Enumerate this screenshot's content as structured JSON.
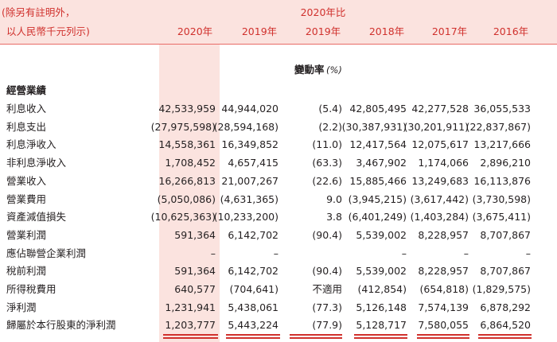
{
  "header": {
    "unit_note_line1": "(除另有註明外，",
    "unit_note_line2": "以人民幣千元列示)",
    "change_group": "2020年比",
    "years": [
      "2020年",
      "2019年",
      "2019年",
      "2018年",
      "2017年",
      "2016年"
    ]
  },
  "change_rate_label": "變動率",
  "change_rate_unit": "(%)",
  "section_title": "經營業績",
  "rows": [
    {
      "label": "利息收入",
      "values": [
        "42,533,959",
        "44,944,020",
        "(5.4)",
        "42,805,495",
        "42,277,528",
        "36,055,533"
      ]
    },
    {
      "label": "利息支出",
      "values": [
        "(27,975,598)",
        "(28,594,168)",
        "(2.2)",
        "(30,387,931)",
        "(30,201,911)",
        "(22,837,867)"
      ]
    },
    {
      "label": "利息淨收入",
      "values": [
        "14,558,361",
        "16,349,852",
        "(11.0)",
        "12,417,564",
        "12,075,617",
        "13,217,666"
      ]
    },
    {
      "label": "非利息淨收入",
      "values": [
        "1,708,452",
        "4,657,415",
        "(63.3)",
        "3,467,902",
        "1,174,066",
        "2,896,210"
      ]
    },
    {
      "label": "營業收入",
      "values": [
        "16,266,813",
        "21,007,267",
        "(22.6)",
        "15,885,466",
        "13,249,683",
        "16,113,876"
      ]
    },
    {
      "label": "營業費用",
      "values": [
        "(5,050,086)",
        "(4,631,365)",
        "9.0",
        "(3,945,215)",
        "(3,617,442)",
        "(3,730,598)"
      ]
    },
    {
      "label": "資產減值損失",
      "values": [
        "(10,625,363)",
        "(10,233,200)",
        "3.8",
        "(6,401,249)",
        "(1,403,284)",
        "(3,675,411)"
      ]
    },
    {
      "label": "營業利潤",
      "values": [
        "591,364",
        "6,142,702",
        "(90.4)",
        "5,539,002",
        "8,228,957",
        "8,707,867"
      ]
    },
    {
      "label": "應佔聯營企業利潤",
      "values": [
        "–",
        "–",
        "",
        "–",
        "–",
        "–"
      ]
    },
    {
      "label": "稅前利潤",
      "values": [
        "591,364",
        "6,142,702",
        "(90.4)",
        "5,539,002",
        "8,228,957",
        "8,707,867"
      ]
    },
    {
      "label": "所得稅費用",
      "values": [
        "640,577",
        "(704,641)",
        "不適用",
        "(412,854)",
        "(654,818)",
        "(1,829,575)"
      ]
    },
    {
      "label": "淨利潤",
      "values": [
        "1,231,941",
        "5,438,061",
        "(77.3)",
        "5,126,148",
        "7,574,139",
        "6,878,292"
      ]
    },
    {
      "label": "歸屬於本行股東的淨利潤",
      "values": [
        "1,203,777",
        "5,443,224",
        "(77.9)",
        "5,128,717",
        "7,580,055",
        "6,864,520"
      ]
    }
  ],
  "colors": {
    "accent": "#d0312d",
    "band": "#fbe3df",
    "rule": "#e96a66"
  }
}
